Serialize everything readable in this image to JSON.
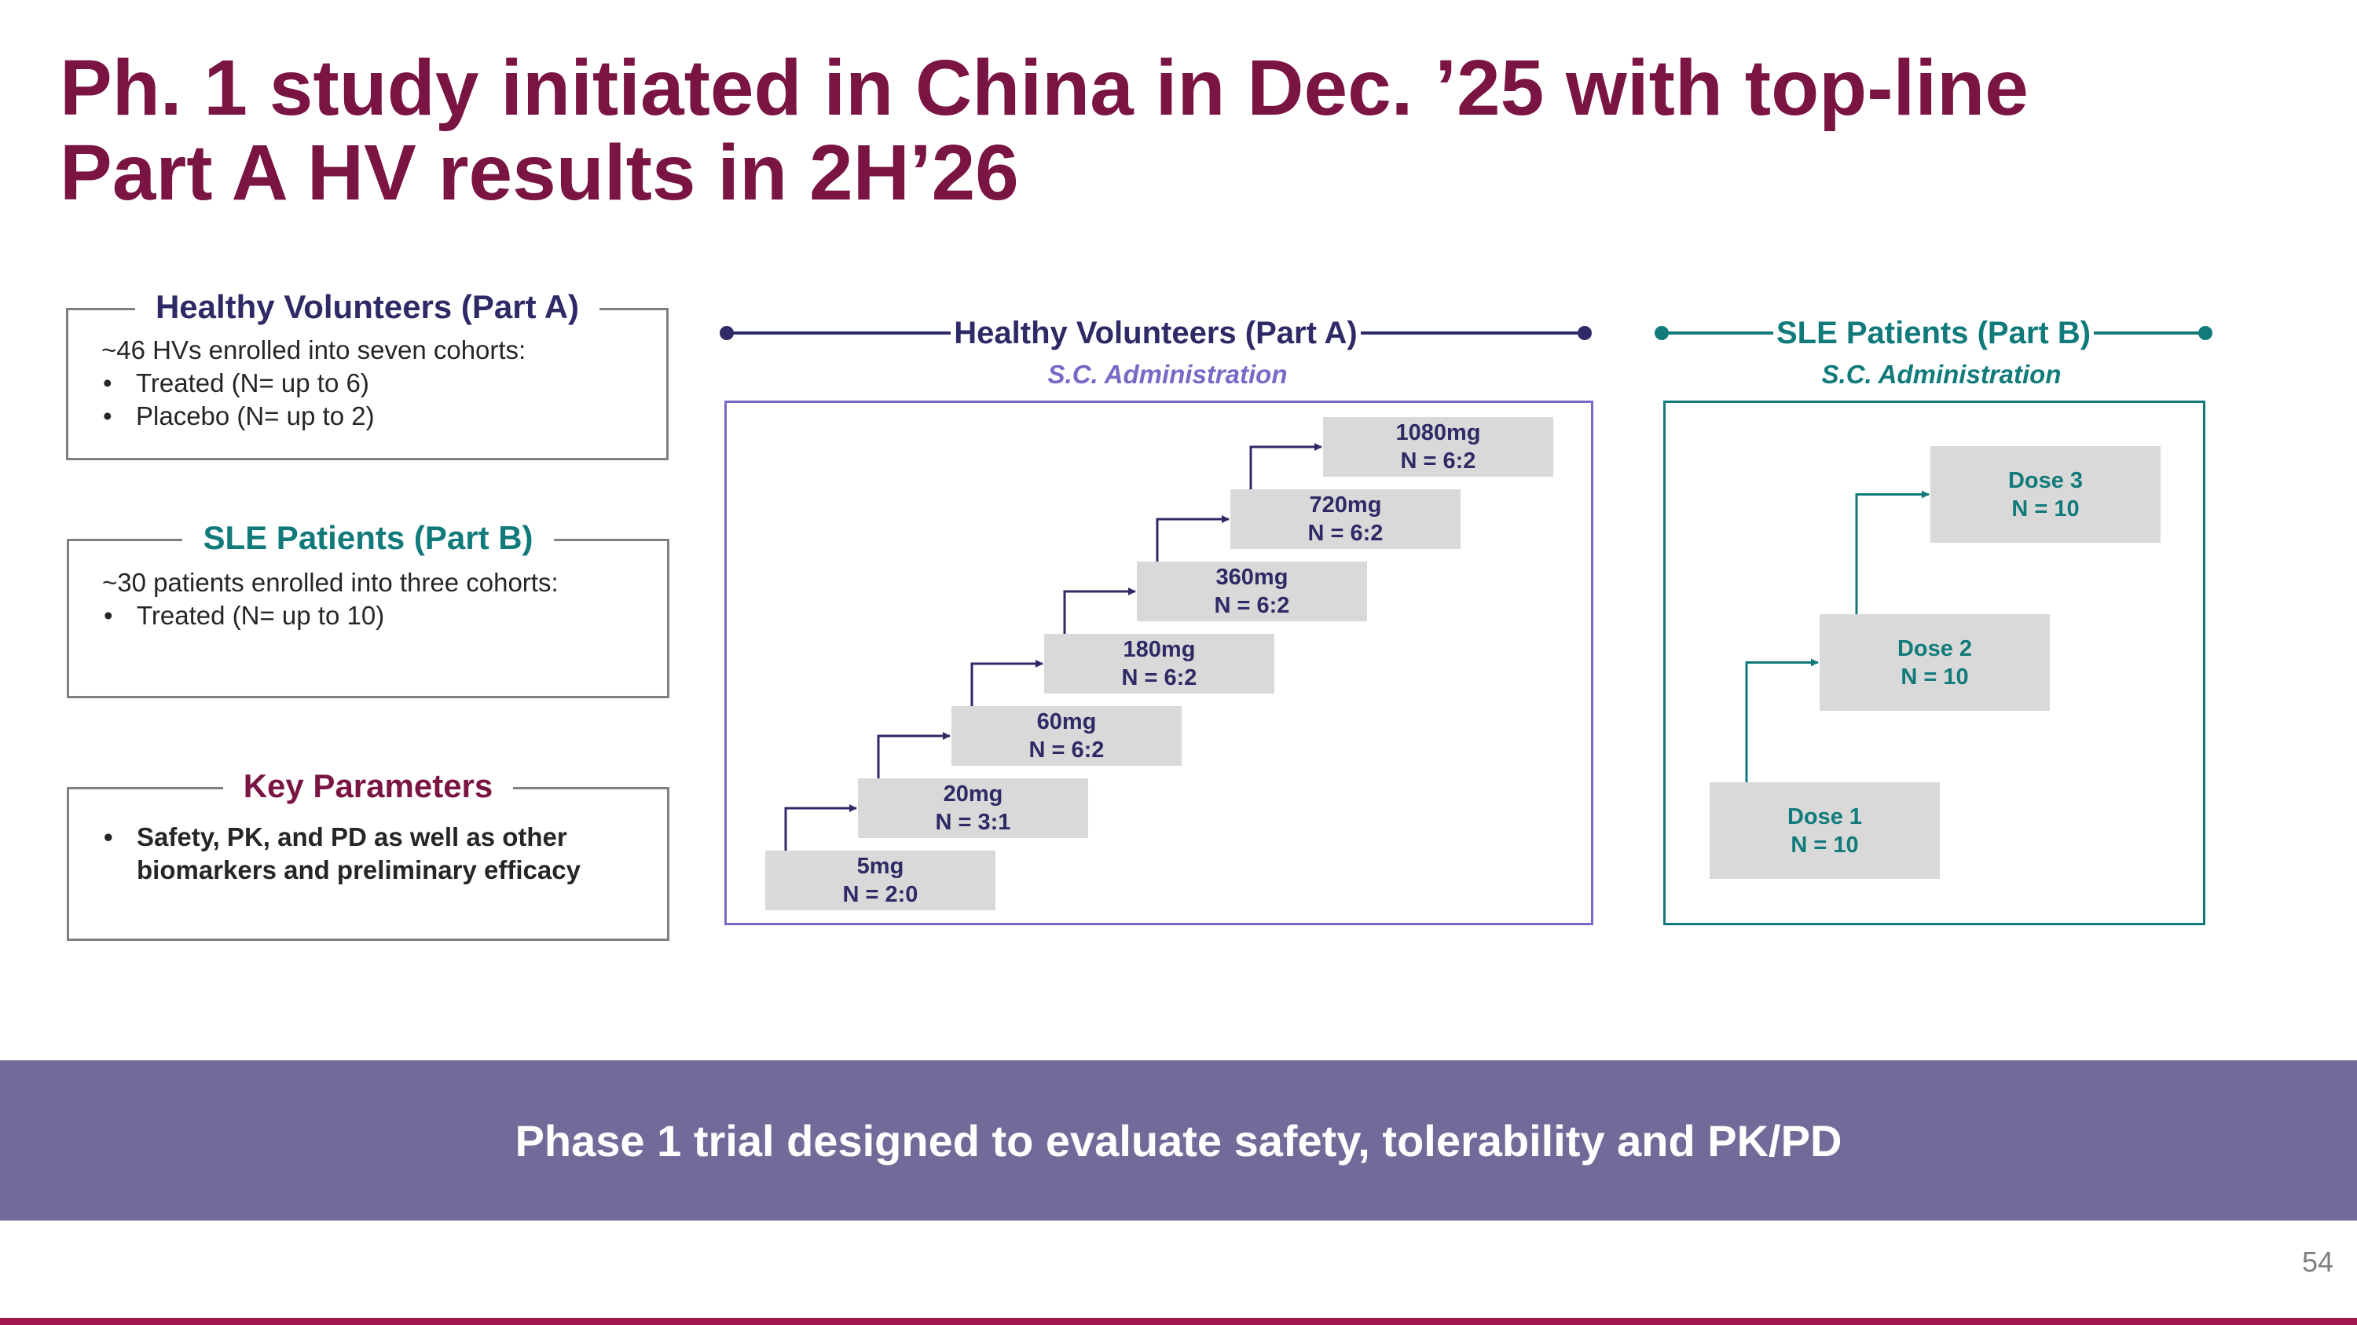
{
  "colors": {
    "title": "#7a1442",
    "hv_navy": "#2e2a66",
    "hv_purple": "#7b68c6",
    "sle_teal": "#117a7a",
    "key_params": "#7a1442",
    "banner_bg": "#746a9a",
    "dose_box": "#d9d9d9",
    "bottom_rule": "#a3174f"
  },
  "title": {
    "line1": "Ph. 1 study initiated in China in Dec. ’25 with top-line",
    "line2": "Part A HV results in 2H’26"
  },
  "left_panel": {
    "hv_box": {
      "title": "Healthy Volunteers (Part A)",
      "intro": "~46 HVs enrolled into seven cohorts:",
      "bullets": [
        "Treated (N= up to 6)",
        "Placebo (N= up to 2)"
      ]
    },
    "sle_box": {
      "title": "SLE Patients (Part B)",
      "intro": "~30 patients enrolled into three cohorts:",
      "bullets": [
        "Treated (N= up to 10)"
      ]
    },
    "key_box": {
      "title": "Key Parameters",
      "bullets": [
        "Safety, PK, and PD as well as other biomarkers and preliminary efficacy"
      ]
    }
  },
  "hv_diagram": {
    "header": "Healthy Volunteers (Part A)",
    "subheader": "S.C. Administration",
    "cohorts": [
      {
        "dose": "5mg",
        "n": "N = 2:0"
      },
      {
        "dose": "20mg",
        "n": "N = 3:1"
      },
      {
        "dose": "60mg",
        "n": "N = 6:2"
      },
      {
        "dose": "180mg",
        "n": "N = 6:2"
      },
      {
        "dose": "360mg",
        "n": "N = 6:2"
      },
      {
        "dose": "720mg",
        "n": "N = 6:2"
      },
      {
        "dose": "1080mg",
        "n": "N = 6:2"
      }
    ]
  },
  "sle_diagram": {
    "header": "SLE Patients (Part B)",
    "subheader": "S.C. Administration",
    "cohorts": [
      {
        "dose": "Dose 1",
        "n": "N = 10"
      },
      {
        "dose": "Dose 2",
        "n": "N = 10"
      },
      {
        "dose": "Dose 3",
        "n": "N = 10"
      }
    ]
  },
  "banner": {
    "text": "Phase 1 trial designed to evaluate safety, tolerability and PK/PD"
  },
  "page_number": "54"
}
